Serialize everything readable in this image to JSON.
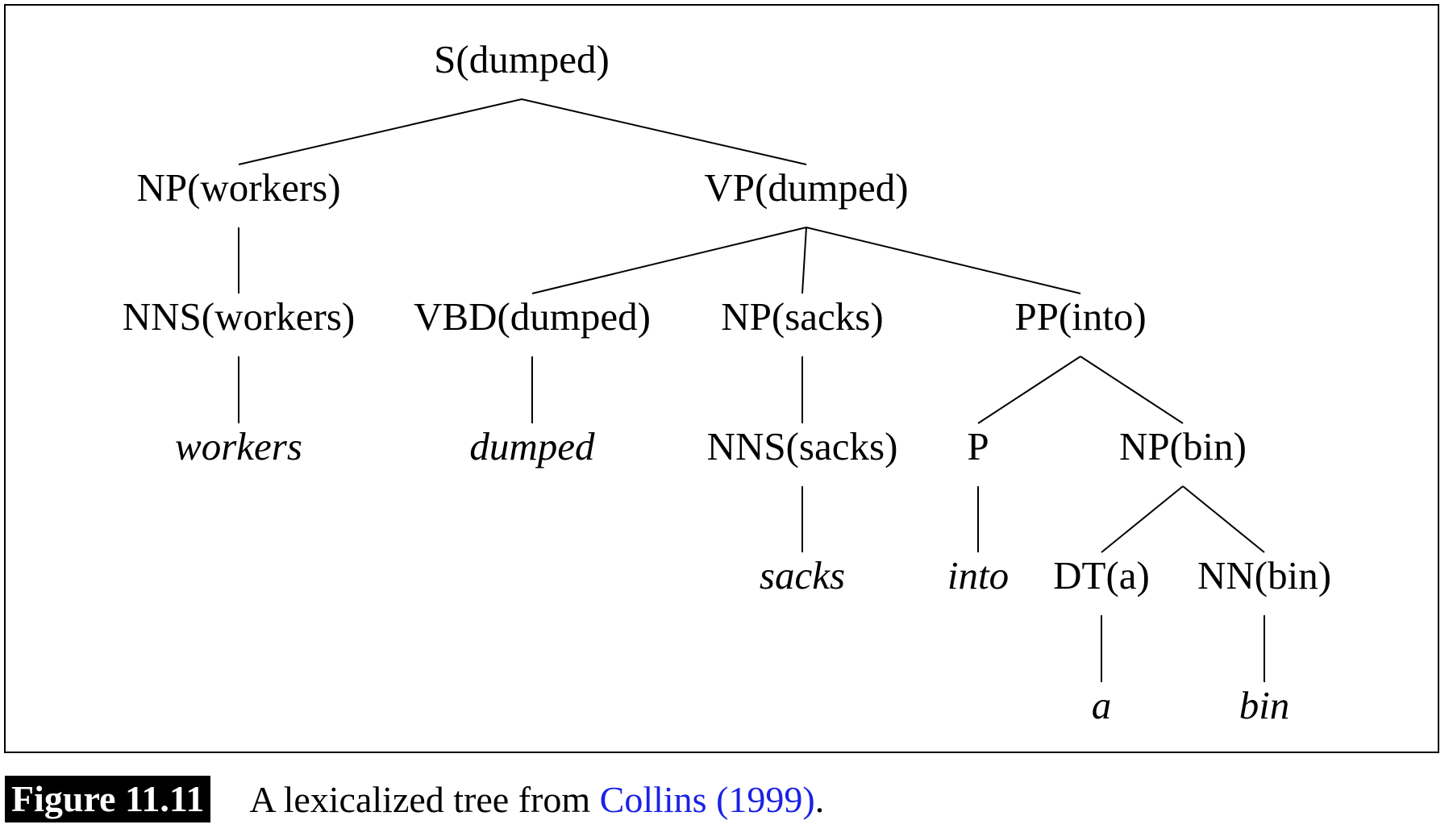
{
  "tree": {
    "root": {
      "label": "S(dumped)",
      "children": [
        {
          "label": "NP(workers)",
          "children": [
            {
              "label": "NNS(workers)",
              "children": [
                {
                  "label": "workers",
                  "word": true
                }
              ]
            }
          ]
        },
        {
          "label": "VP(dumped)",
          "children": [
            {
              "label": "VBD(dumped)",
              "children": [
                {
                  "label": "dumped",
                  "word": true
                }
              ]
            },
            {
              "label": "NP(sacks)",
              "children": [
                {
                  "label": "NNS(sacks)",
                  "children": [
                    {
                      "label": "sacks",
                      "word": true
                    }
                  ]
                }
              ]
            },
            {
              "label": "PP(into)",
              "children": [
                {
                  "label": "P",
                  "children": [
                    {
                      "label": "into",
                      "word": true
                    }
                  ]
                },
                {
                  "label": "NP(bin)",
                  "children": [
                    {
                      "label": "DT(a)",
                      "children": [
                        {
                          "label": "a",
                          "word": true
                        }
                      ]
                    },
                    {
                      "label": "NN(bin)",
                      "children": [
                        {
                          "label": "bin",
                          "word": true
                        }
                      ]
                    }
                  ]
                }
              ]
            }
          ]
        }
      ]
    }
  },
  "caption": {
    "figure_label": "Figure 11.11",
    "text": "A lexicalized tree from ",
    "citation": "Collins (1999)",
    "end": "."
  },
  "colors": {
    "citation_link": "#1a22e6",
    "figure_tag_bg": "#000000"
  }
}
